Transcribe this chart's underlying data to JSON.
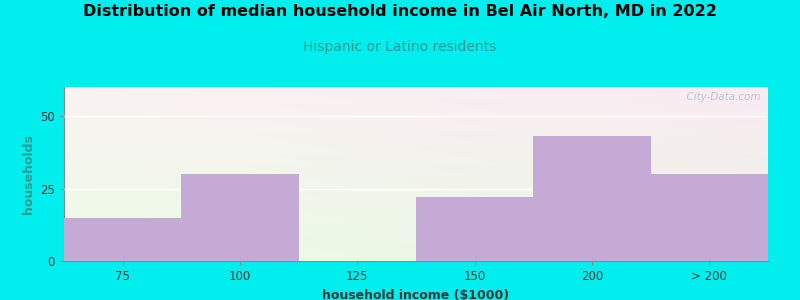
{
  "title": "Distribution of median household income in Bel Air North, MD in 2022",
  "subtitle": "Hispanic or Latino residents",
  "xlabel": "household income ($1000)",
  "ylabel": "households",
  "background_outer": "#00EEEE",
  "bar_color": "#c4aad4",
  "title_fontsize": 11.5,
  "subtitle_fontsize": 10,
  "subtitle_color": "#2a9d8f",
  "axis_label_fontsize": 9,
  "tick_fontsize": 8.5,
  "ylabel_color": "#2a9d8f",
  "xlabel_color": "#333333",
  "tick_label_color": "#333333",
  "ylim": [
    0,
    60
  ],
  "yticks": [
    0,
    25,
    50
  ],
  "xtick_labels": [
    "75",
    "100",
    "125",
    "150",
    "200",
    "> 200"
  ],
  "bar_lefts": [
    0,
    1,
    3,
    4,
    5
  ],
  "bar_heights": [
    15,
    30,
    22,
    43,
    30
  ],
  "bar_widths": [
    1,
    1,
    1,
    1,
    1
  ],
  "n_slots": 6,
  "watermark": "  City-Data.com"
}
